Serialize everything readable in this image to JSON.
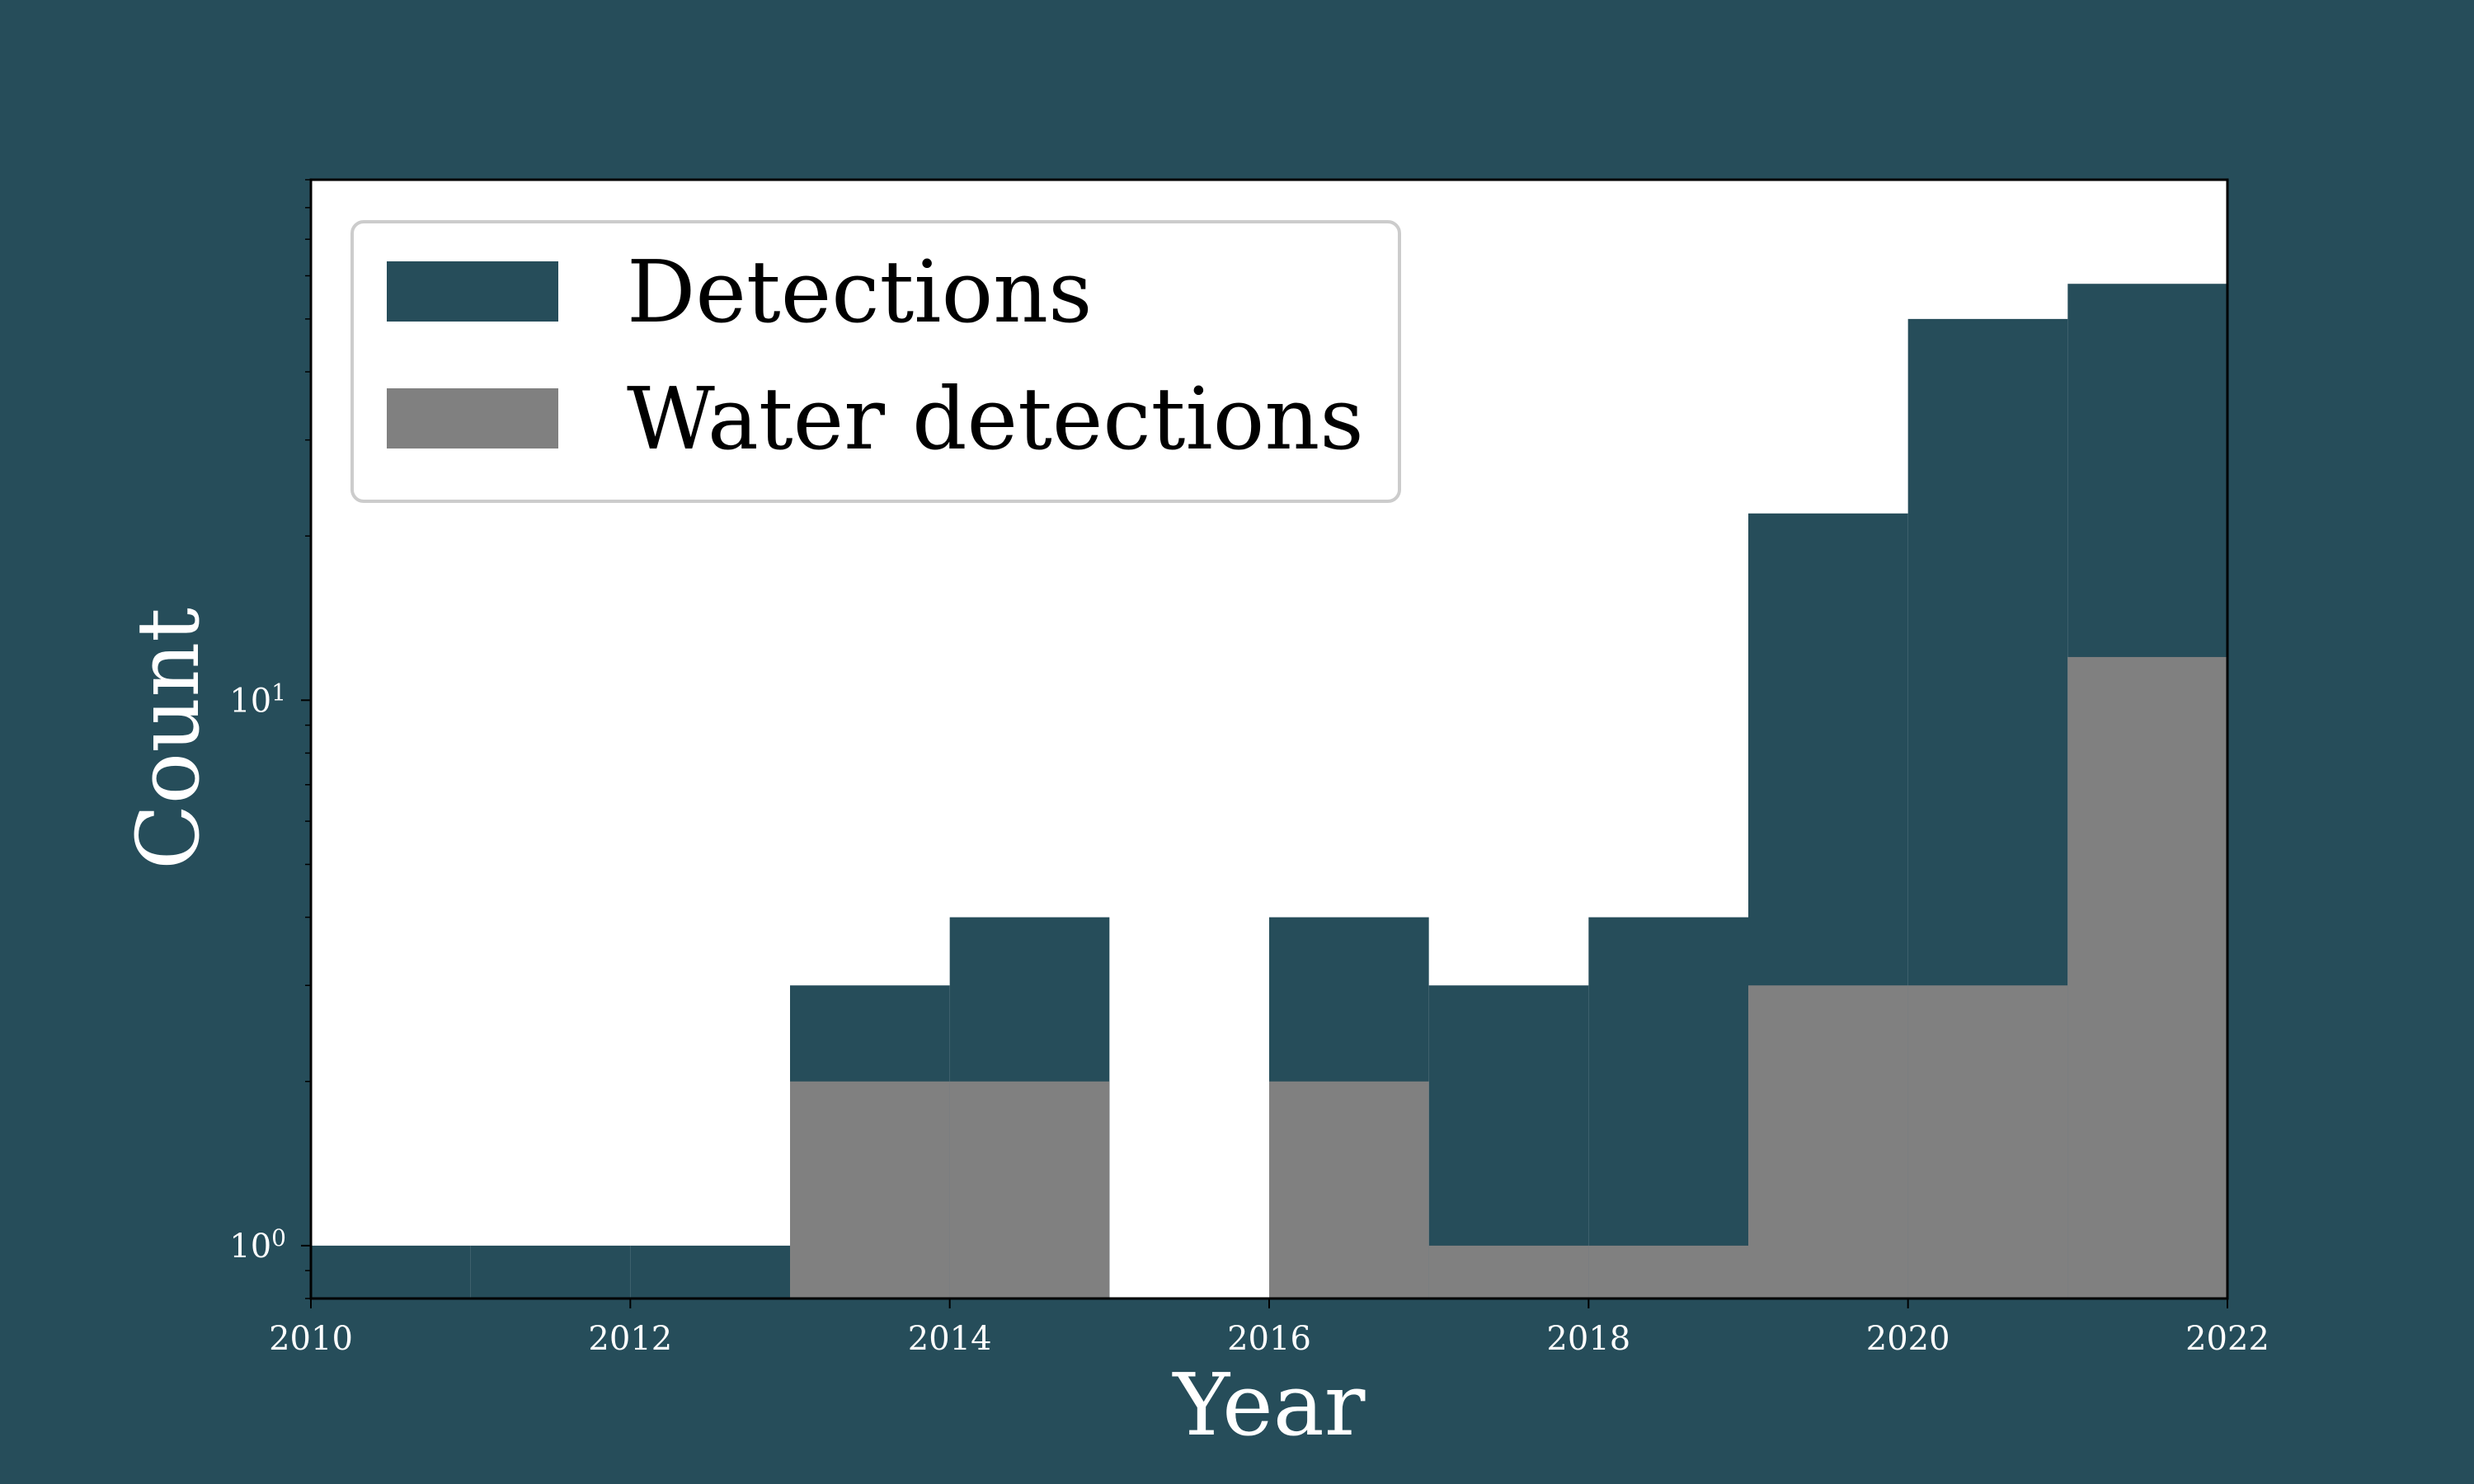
{
  "chart_data": {
    "type": "bar",
    "xlabel": "Year",
    "ylabel": "Count",
    "xlim": [
      2010,
      2022
    ],
    "ylim": [
      0.8,
      90
    ],
    "y_scale": "log",
    "grid": false,
    "legend_position": "top-left",
    "x_ticks": [
      "2010",
      "2012",
      "2014",
      "2016",
      "2018",
      "2020",
      "2022"
    ],
    "y_ticks": [
      {
        "base": "10",
        "exp": "0",
        "value": 1
      },
      {
        "base": "10",
        "exp": "1",
        "value": 10
      }
    ],
    "bin_edges": [
      2010,
      2011,
      2012,
      2013,
      2014,
      2015,
      2016,
      2017,
      2018,
      2019,
      2020,
      2021,
      2022
    ],
    "series": [
      {
        "name": "Detections",
        "color": "#264d5a",
        "values": [
          1,
          1,
          1,
          3,
          4,
          0,
          4,
          3,
          4,
          22,
          50,
          58
        ]
      },
      {
        "name": "Water detections",
        "color": "#808080",
        "values": [
          0,
          0,
          0,
          2,
          2,
          0,
          2,
          1,
          1,
          3,
          3,
          12
        ]
      }
    ]
  }
}
